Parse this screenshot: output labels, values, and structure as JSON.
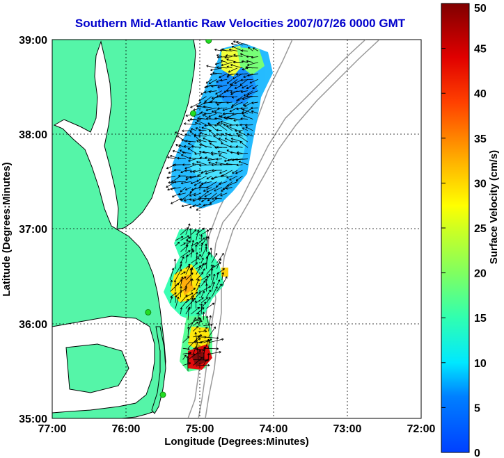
{
  "chart_data": {
    "type": "heatmap",
    "title": "Southern Mid-Atlantic Raw Velocities 2007/07/26 0000 GMT",
    "xlabel": "Longitude (Degrees:Minutes)",
    "ylabel": "Latitude (Degrees:Minutes)",
    "x_ticks": [
      "77:00",
      "76:00",
      "75:00",
      "74:00",
      "73:00",
      "72:00"
    ],
    "y_ticks": [
      "39:00",
      "38:00",
      "37:00",
      "36:00",
      "35:00"
    ],
    "xlim": [
      -77,
      -72
    ],
    "ylim": [
      35,
      39
    ],
    "grid": true,
    "colorbar": {
      "label": "Surface Velocity (cm/s)",
      "range": [
        0,
        50
      ],
      "ticks": [
        "50",
        "45",
        "40",
        "35",
        "30",
        "25",
        "20",
        "15",
        "10",
        "5",
        "0"
      ],
      "colormap": "jet"
    },
    "colors": {
      "title": "#0000cc",
      "land": "#55f5a8",
      "coast": "#000000",
      "bathymetry": "#999999",
      "station": "#22dd22"
    },
    "velocity_regions": [
      {
        "region": "northern",
        "lon": [
          -75.4,
          -74.2
        ],
        "lat": [
          37.2,
          39.0
        ],
        "speed_range": [
          5,
          22
        ]
      },
      {
        "region": "central",
        "lon": [
          -75.4,
          -74.6
        ],
        "lat": [
          36.1,
          37.0
        ],
        "speed_range": [
          10,
          30
        ]
      },
      {
        "region": "southern",
        "lon": [
          -75.3,
          -74.7
        ],
        "lat": [
          35.5,
          36.1
        ],
        "speed_range": [
          15,
          50
        ]
      }
    ],
    "stations": [
      {
        "lon": -74.88,
        "lat": 38.99
      },
      {
        "lon": -75.09,
        "lat": 38.22
      },
      {
        "lon": -75.7,
        "lat": 36.12
      },
      {
        "lon": -75.5,
        "lat": 35.25
      }
    ]
  }
}
